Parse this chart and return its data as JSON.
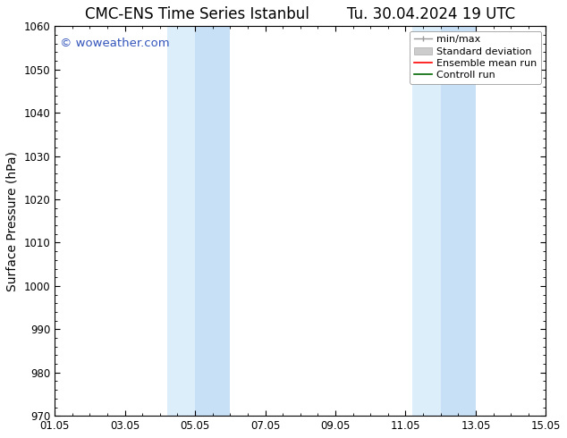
{
  "title_left": "CMC-ENS Time Series Istanbul",
  "title_right": "Tu. 30.04.2024 19 UTC",
  "ylabel": "Surface Pressure (hPa)",
  "ylim": [
    970,
    1060
  ],
  "yticks": [
    970,
    980,
    990,
    1000,
    1010,
    1020,
    1030,
    1040,
    1050,
    1060
  ],
  "xlim_start": 0,
  "xlim_end": 14,
  "xtick_labels": [
    "01.05",
    "03.05",
    "05.05",
    "07.05",
    "09.05",
    "11.05",
    "13.05",
    "15.05"
  ],
  "xtick_positions": [
    0,
    2,
    4,
    6,
    8,
    10,
    12,
    14
  ],
  "shaded_regions": [
    {
      "x_start": 3.2,
      "x_end": 4.0,
      "color": "#dceefa"
    },
    {
      "x_start": 4.0,
      "x_end": 5.0,
      "color": "#c8e0f5"
    },
    {
      "x_start": 10.2,
      "x_end": 11.0,
      "color": "#dceefa"
    },
    {
      "x_start": 11.0,
      "x_end": 12.0,
      "color": "#c8e0f5"
    }
  ],
  "watermark": "© woweather.com",
  "watermark_color": "#3355bb",
  "background_color": "#ffffff",
  "title_fontsize": 12,
  "ylabel_fontsize": 10,
  "tick_fontsize": 8.5,
  "legend_fontsize": 8
}
